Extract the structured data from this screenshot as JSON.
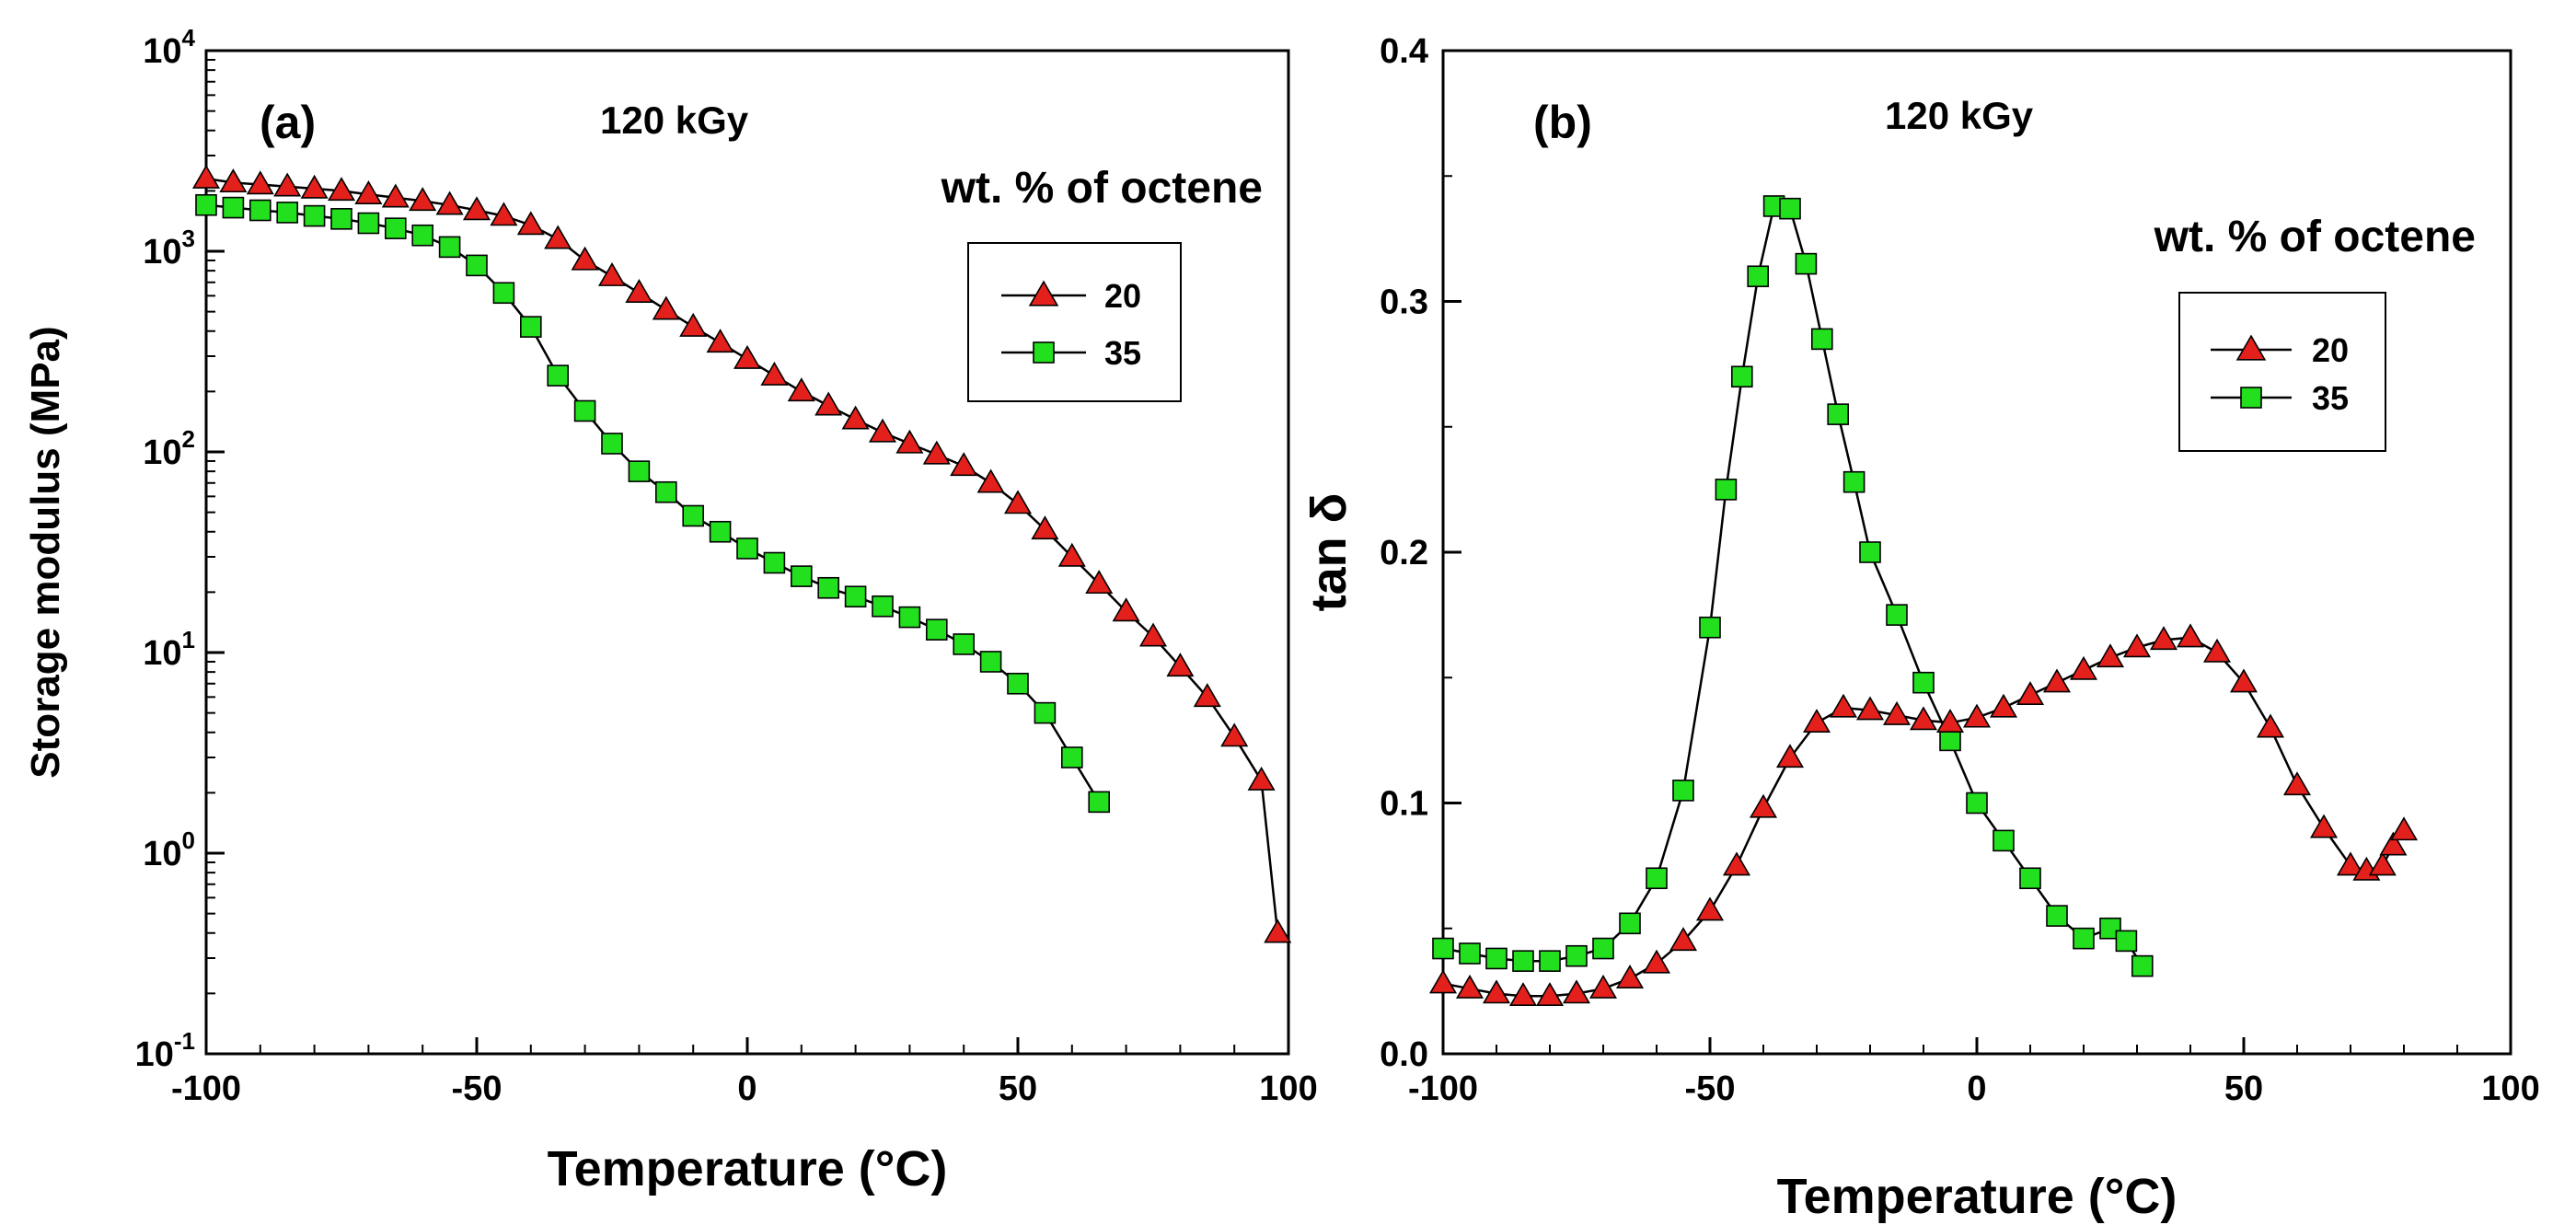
{
  "colors": {
    "series20_fill": "#e3201b",
    "series35_fill": "#22e01e",
    "line": "#000000"
  },
  "chart_data": [
    {
      "type": "line",
      "panel_label": "(a)",
      "condition": "120 kGy",
      "xlabel": "Temperature (°C)",
      "ylabel": "Storage modulus (MPa)",
      "yscale": "log",
      "xlim": [
        -100,
        100
      ],
      "ylim": [
        0.1,
        10000
      ],
      "x_ticks": [
        "-100",
        "-50",
        "0",
        "50",
        "100"
      ],
      "y_ticks": [
        {
          "base": "10",
          "exp": "-1"
        },
        {
          "base": "10",
          "exp": "0"
        },
        {
          "base": "10",
          "exp": "1"
        },
        {
          "base": "10",
          "exp": "2"
        },
        {
          "base": "10",
          "exp": "3"
        },
        {
          "base": "10",
          "exp": "4"
        }
      ],
      "legend_title": "wt. % of octene",
      "series": [
        {
          "name": "20",
          "marker": "triangle",
          "x": [
            -100,
            -95,
            -90,
            -85,
            -80,
            -75,
            -70,
            -65,
            -60,
            -55,
            -50,
            -45,
            -40,
            -35,
            -30,
            -25,
            -20,
            -15,
            -10,
            -5,
            0,
            5,
            10,
            15,
            20,
            25,
            30,
            35,
            40,
            45,
            50,
            55,
            60,
            65,
            70,
            75,
            80,
            85,
            90,
            95,
            98
          ],
          "y": [
            2300,
            2200,
            2150,
            2100,
            2050,
            2000,
            1920,
            1850,
            1780,
            1700,
            1600,
            1500,
            1350,
            1150,
            900,
            750,
            620,
            510,
            420,
            350,
            290,
            240,
            200,
            170,
            145,
            125,
            110,
            97,
            85,
            70,
            55,
            41,
            30,
            22,
            16,
            12,
            8.5,
            6,
            3.8,
            2.3,
            0.4
          ]
        },
        {
          "name": "35",
          "marker": "square",
          "x": [
            -100,
            -95,
            -90,
            -85,
            -80,
            -75,
            -70,
            -65,
            -60,
            -55,
            -50,
            -45,
            -40,
            -35,
            -30,
            -25,
            -20,
            -15,
            -10,
            -5,
            0,
            5,
            10,
            15,
            20,
            25,
            30,
            35,
            40,
            45,
            50,
            55,
            60,
            65
          ],
          "y": [
            1700,
            1650,
            1600,
            1560,
            1500,
            1450,
            1380,
            1300,
            1200,
            1050,
            850,
            620,
            420,
            240,
            160,
            110,
            80,
            63,
            48,
            40,
            33,
            28,
            24,
            21,
            19,
            17,
            15,
            13,
            11,
            9,
            7,
            5,
            3,
            1.8
          ]
        }
      ]
    },
    {
      "type": "line",
      "panel_label": "(b)",
      "condition": "120 kGy",
      "xlabel": "Temperature (°C)",
      "ylabel": "tan δ",
      "xlim": [
        -100,
        100
      ],
      "ylim": [
        0.0,
        0.4
      ],
      "x_ticks": [
        "-100",
        "-50",
        "0",
        "50",
        "100"
      ],
      "y_ticks": [
        "0.0",
        "0.1",
        "0.2",
        "0.3",
        "0.4"
      ],
      "legend_title": "wt. % of octene",
      "series": [
        {
          "name": "20",
          "marker": "triangle",
          "x": [
            -100,
            -95,
            -90,
            -85,
            -80,
            -75,
            -70,
            -65,
            -60,
            -55,
            -50,
            -45,
            -40,
            -35,
            -30,
            -25,
            -20,
            -15,
            -10,
            -5,
            0,
            5,
            10,
            15,
            20,
            25,
            30,
            35,
            40,
            45,
            50,
            55,
            60,
            65,
            70,
            73,
            76,
            78,
            80
          ],
          "y": [
            0.028,
            0.026,
            0.024,
            0.023,
            0.023,
            0.024,
            0.026,
            0.03,
            0.036,
            0.045,
            0.057,
            0.075,
            0.098,
            0.118,
            0.132,
            0.138,
            0.137,
            0.135,
            0.133,
            0.132,
            0.134,
            0.138,
            0.143,
            0.148,
            0.153,
            0.158,
            0.162,
            0.165,
            0.166,
            0.16,
            0.148,
            0.13,
            0.107,
            0.09,
            0.075,
            0.073,
            0.075,
            0.083,
            0.089
          ]
        },
        {
          "name": "35",
          "marker": "square",
          "x": [
            -100,
            -95,
            -90,
            -85,
            -80,
            -75,
            -70,
            -65,
            -60,
            -55,
            -50,
            -47,
            -44,
            -41,
            -38,
            -35,
            -32,
            -29,
            -26,
            -23,
            -20,
            -15,
            -10,
            -5,
            0,
            5,
            10,
            15,
            20,
            25,
            28,
            31
          ],
          "y": [
            0.042,
            0.04,
            0.038,
            0.037,
            0.037,
            0.039,
            0.042,
            0.052,
            0.07,
            0.105,
            0.17,
            0.225,
            0.27,
            0.31,
            0.338,
            0.337,
            0.315,
            0.285,
            0.255,
            0.228,
            0.2,
            0.175,
            0.148,
            0.125,
            0.1,
            0.085,
            0.07,
            0.055,
            0.046,
            0.05,
            0.045,
            0.035
          ]
        }
      ]
    }
  ]
}
